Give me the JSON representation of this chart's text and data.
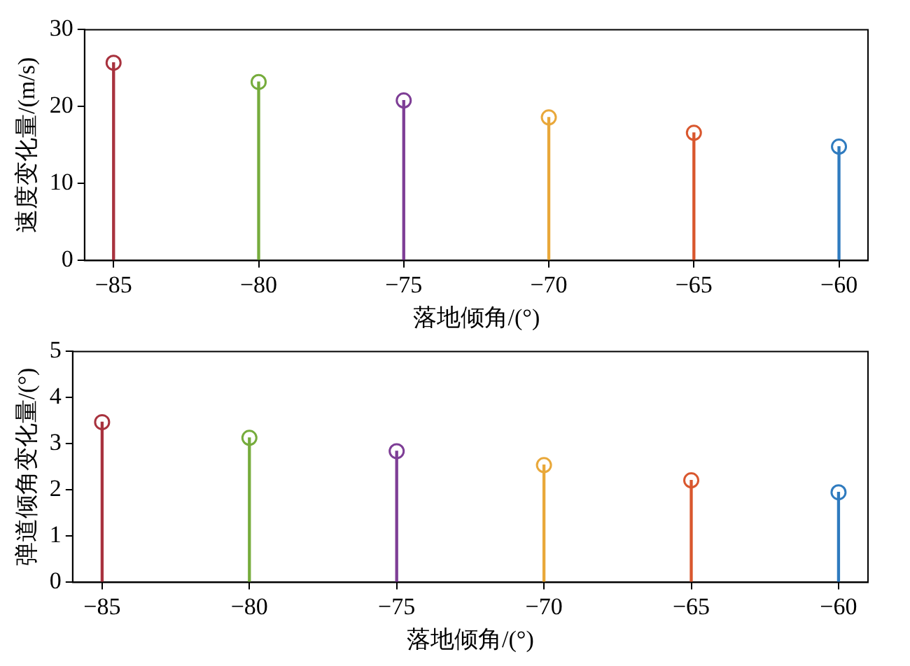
{
  "chart_data": [
    {
      "type": "lollipop",
      "x": [
        -85,
        -80,
        -75,
        -70,
        -65,
        -60
      ],
      "values": [
        25.7,
        23.2,
        20.8,
        18.6,
        16.6,
        14.8
      ],
      "colors": [
        "#a8323e",
        "#76ac3c",
        "#7e3e96",
        "#e9a83a",
        "#d9572e",
        "#2f7bbf"
      ],
      "xlabel": "落地倾角/(°)",
      "ylabel": "速度变化量/(m/s)",
      "xlim": [
        -86,
        -59
      ],
      "xticks": [
        -85,
        -80,
        -75,
        -70,
        -65,
        -60
      ],
      "ylim": [
        0,
        30
      ],
      "yticks": [
        0,
        10,
        20,
        30
      ],
      "marker": "circle",
      "grid": false,
      "legend": false
    },
    {
      "type": "lollipop",
      "x": [
        -85,
        -80,
        -75,
        -70,
        -65,
        -60
      ],
      "values": [
        3.47,
        3.13,
        2.84,
        2.54,
        2.21,
        1.95
      ],
      "colors": [
        "#a8323e",
        "#76ac3c",
        "#7e3e96",
        "#e9a83a",
        "#d9572e",
        "#2f7bbf"
      ],
      "xlabel": "落地倾角/(°)",
      "ylabel": "弹道倾角变化量/(°)",
      "xlim": [
        -86,
        -59
      ],
      "xticks": [
        -85,
        -80,
        -75,
        -70,
        -65,
        -60
      ],
      "ylim": [
        0,
        5
      ],
      "yticks": [
        0,
        1,
        2,
        3,
        4,
        5
      ],
      "marker": "circle",
      "grid": false,
      "legend": false
    }
  ]
}
